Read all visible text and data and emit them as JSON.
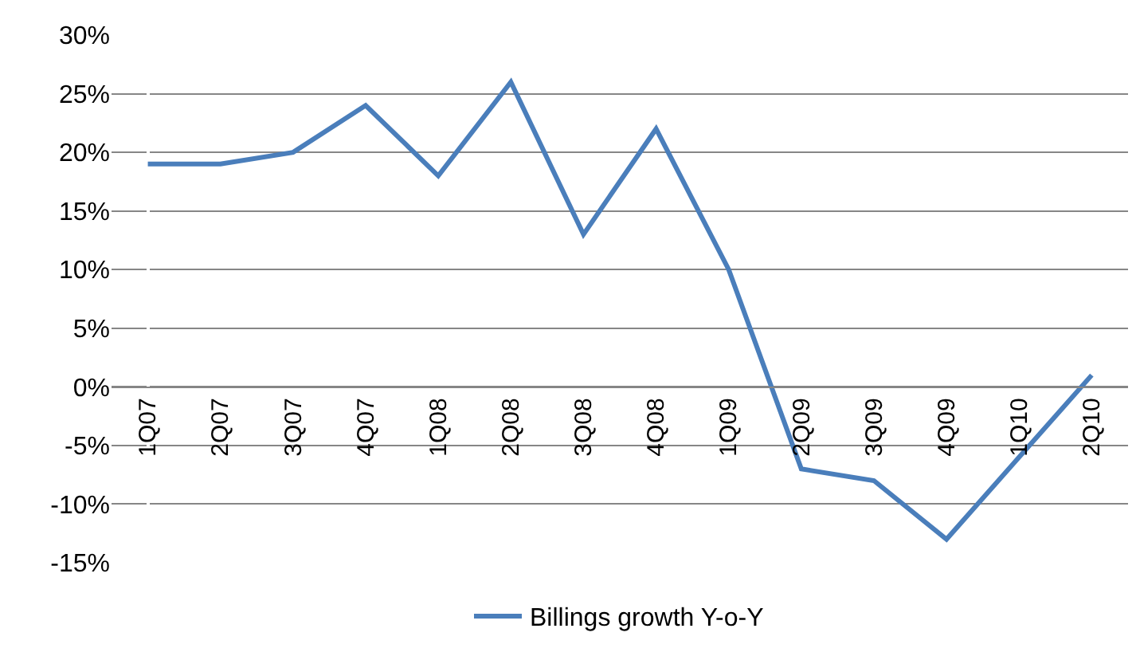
{
  "chart_data": {
    "type": "line",
    "categories": [
      "1Q07",
      "2Q07",
      "3Q07",
      "4Q07",
      "1Q08",
      "2Q08",
      "3Q08",
      "4Q08",
      "1Q09",
      "2Q09",
      "3Q09",
      "4Q09",
      "1Q10",
      "2Q10"
    ],
    "series": [
      {
        "name": "Billings growth Y-o-Y",
        "color": "#4a7ebb",
        "values": [
          19,
          19,
          20,
          24,
          18,
          26,
          13,
          22,
          10,
          -7,
          -8,
          -13,
          -6,
          1
        ]
      }
    ],
    "ylim": [
      -15,
      30
    ],
    "yticks": [
      {
        "value": -15,
        "label": "-15%"
      },
      {
        "value": -10,
        "label": "-10%"
      },
      {
        "value": -5,
        "label": "-5%"
      },
      {
        "value": 0,
        "label": "0%"
      },
      {
        "value": 5,
        "label": "5%"
      },
      {
        "value": 10,
        "label": "10%"
      },
      {
        "value": 15,
        "label": "15%"
      },
      {
        "value": 20,
        "label": "20%"
      },
      {
        "value": 25,
        "label": "25%"
      },
      {
        "value": 30,
        "label": "30%"
      }
    ],
    "grid": "y",
    "legend": "bottom",
    "marker": "none",
    "line_style": "solid"
  }
}
